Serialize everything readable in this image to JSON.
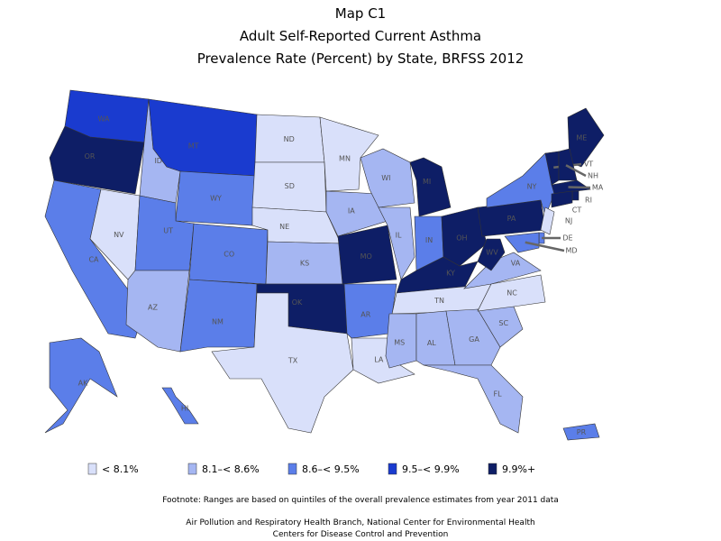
{
  "title": [
    "Map C1",
    "Adult Self-Reported Current Asthma",
    "Prevalence Rate (Percent) by State, BRFSS 2012"
  ],
  "legend": [
    {
      "label": "< 8.1%",
      "color": "#d9e0fa"
    },
    {
      "label": "8.1–< 8.6%",
      "color": "#a5b6f2"
    },
    {
      "label": "8.6–< 9.5%",
      "color": "#5b7ee9"
    },
    {
      "label": "9.5–< 9.9%",
      "color": "#1a3bcf"
    },
    {
      "label": "9.9%+",
      "color": "#0e1e66"
    }
  ],
  "states": [
    {
      "abbr": "WA",
      "class": 3
    },
    {
      "abbr": "OR",
      "class": 4
    },
    {
      "abbr": "CA",
      "class": 2
    },
    {
      "abbr": "NV",
      "class": 0
    },
    {
      "abbr": "ID",
      "class": 1
    },
    {
      "abbr": "MT",
      "class": 3
    },
    {
      "abbr": "WY",
      "class": 2
    },
    {
      "abbr": "UT",
      "class": 2
    },
    {
      "abbr": "AZ",
      "class": 1
    },
    {
      "abbr": "CO",
      "class": 2
    },
    {
      "abbr": "NM",
      "class": 2
    },
    {
      "abbr": "ND",
      "class": 0
    },
    {
      "abbr": "SD",
      "class": 0
    },
    {
      "abbr": "NE",
      "class": 0
    },
    {
      "abbr": "KS",
      "class": 1
    },
    {
      "abbr": "OK",
      "class": 4
    },
    {
      "abbr": "TX",
      "class": 0
    },
    {
      "abbr": "MN",
      "class": 0
    },
    {
      "abbr": "IA",
      "class": 1
    },
    {
      "abbr": "MO",
      "class": 4
    },
    {
      "abbr": "AR",
      "class": 2
    },
    {
      "abbr": "LA",
      "class": 0
    },
    {
      "abbr": "WI",
      "class": 1
    },
    {
      "abbr": "IL",
      "class": 1
    },
    {
      "abbr": "MI",
      "class": 4
    },
    {
      "abbr": "IN",
      "class": 2
    },
    {
      "abbr": "OH",
      "class": 4
    },
    {
      "abbr": "KY",
      "class": 4
    },
    {
      "abbr": "TN",
      "class": 0
    },
    {
      "abbr": "MS",
      "class": 1
    },
    {
      "abbr": "AL",
      "class": 1
    },
    {
      "abbr": "GA",
      "class": 1
    },
    {
      "abbr": "FL",
      "class": 1
    },
    {
      "abbr": "SC",
      "class": 1
    },
    {
      "abbr": "NC",
      "class": 0
    },
    {
      "abbr": "VA",
      "class": 1
    },
    {
      "abbr": "WV",
      "class": 4
    },
    {
      "abbr": "PA",
      "class": 4
    },
    {
      "abbr": "NY",
      "class": 2
    },
    {
      "abbr": "ME",
      "class": 4
    },
    {
      "abbr": "VT",
      "class": 4
    },
    {
      "abbr": "NH",
      "class": 4
    },
    {
      "abbr": "MA",
      "class": 4
    },
    {
      "abbr": "RI",
      "class": 4
    },
    {
      "abbr": "CT",
      "class": 4
    },
    {
      "abbr": "NJ",
      "class": 0
    },
    {
      "abbr": "DE",
      "class": 2
    },
    {
      "abbr": "MD",
      "class": 2
    },
    {
      "abbr": "AK",
      "class": 2
    },
    {
      "abbr": "HI",
      "class": 2
    },
    {
      "abbr": "PR",
      "class": 2
    }
  ],
  "footnote": "Footnote: Ranges are based on quintiles of the overall prevalence estimates from year 2011 data",
  "credits": [
    "Air Pollution and Respiratory Health Branch, National Center for Environmental Health",
    "Centers for Disease Control and Prevention"
  ]
}
